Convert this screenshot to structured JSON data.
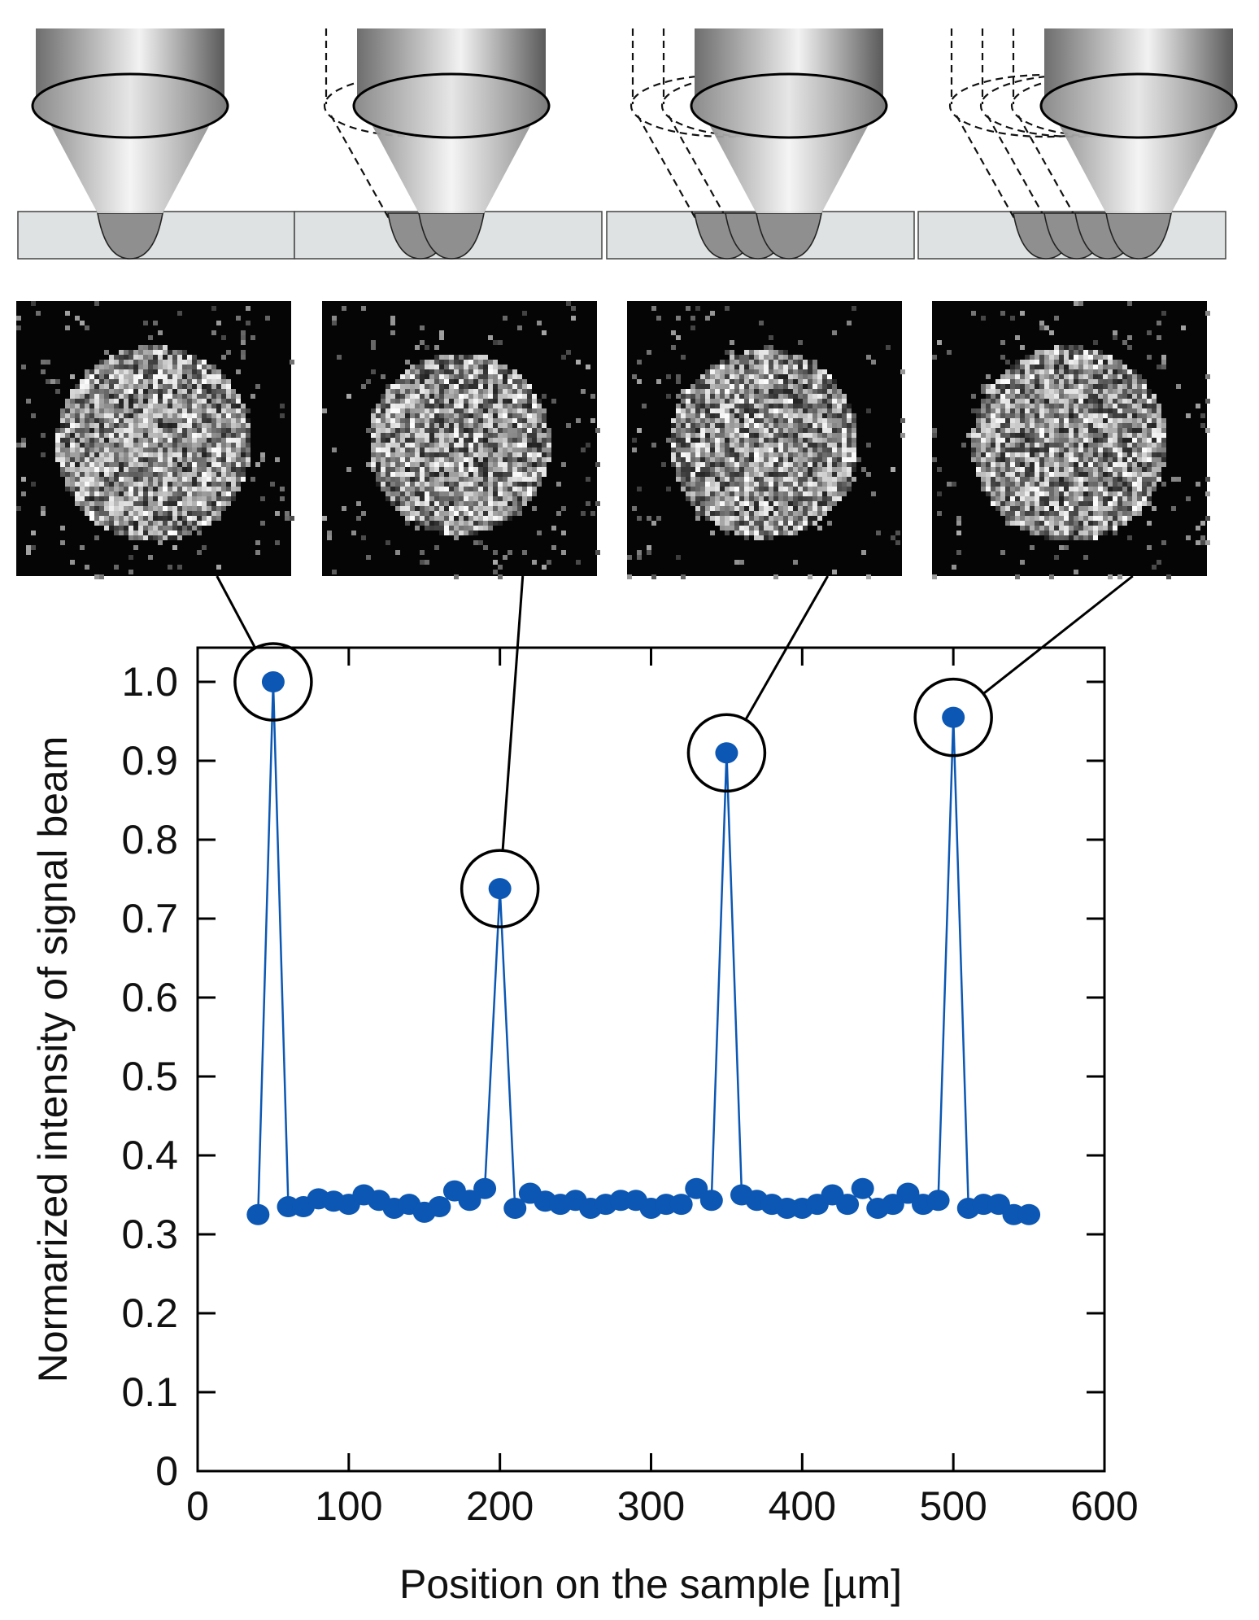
{
  "chart_data": {
    "type": "line",
    "title": "",
    "xlabel": "Position on the sample [µm]",
    "ylabel": "Normarized intensity of signal beam",
    "xlim": [
      0,
      600
    ],
    "ylim": [
      0,
      1.05
    ],
    "x_ticks": [
      0,
      100,
      200,
      300,
      400,
      500,
      600
    ],
    "x_tick_labels": [
      "0",
      "100",
      "200",
      "300",
      "400",
      "500",
      "600"
    ],
    "y_ticks": [
      0,
      0.1,
      0.2,
      0.3,
      0.4,
      0.5,
      0.6,
      0.7,
      0.8,
      0.9,
      1.0
    ],
    "y_tick_labels": [
      "0",
      "0.1",
      "0.2",
      "0.3",
      "0.4",
      "0.5",
      "0.6",
      "0.7",
      "0.8",
      "0.9",
      "1.0"
    ],
    "grid": false,
    "legend": "none",
    "series": [
      {
        "color": "#0b57b3",
        "points": [
          [
            40,
            0.325
          ],
          [
            50,
            1.0
          ],
          [
            60,
            0.335
          ],
          [
            70,
            0.335
          ],
          [
            80,
            0.345
          ],
          [
            90,
            0.342
          ],
          [
            100,
            0.338
          ],
          [
            110,
            0.35
          ],
          [
            120,
            0.343
          ],
          [
            130,
            0.333
          ],
          [
            140,
            0.338
          ],
          [
            150,
            0.328
          ],
          [
            160,
            0.335
          ],
          [
            170,
            0.355
          ],
          [
            180,
            0.343
          ],
          [
            190,
            0.358
          ],
          [
            200,
            0.738
          ],
          [
            210,
            0.333
          ],
          [
            220,
            0.352
          ],
          [
            230,
            0.342
          ],
          [
            240,
            0.338
          ],
          [
            250,
            0.343
          ],
          [
            260,
            0.333
          ],
          [
            270,
            0.338
          ],
          [
            280,
            0.343
          ],
          [
            290,
            0.343
          ],
          [
            300,
            0.333
          ],
          [
            310,
            0.338
          ],
          [
            320,
            0.338
          ],
          [
            330,
            0.358
          ],
          [
            340,
            0.343
          ],
          [
            350,
            0.91
          ],
          [
            360,
            0.35
          ],
          [
            370,
            0.343
          ],
          [
            380,
            0.338
          ],
          [
            390,
            0.333
          ],
          [
            400,
            0.333
          ],
          [
            410,
            0.338
          ],
          [
            420,
            0.35
          ],
          [
            430,
            0.338
          ],
          [
            440,
            0.358
          ],
          [
            450,
            0.333
          ],
          [
            460,
            0.338
          ],
          [
            470,
            0.352
          ],
          [
            480,
            0.338
          ],
          [
            490,
            0.343
          ],
          [
            500,
            0.955
          ],
          [
            510,
            0.333
          ],
          [
            520,
            0.338
          ],
          [
            530,
            0.338
          ],
          [
            540,
            0.325
          ],
          [
            550,
            0.325
          ]
        ]
      }
    ],
    "highlighted_points": [
      {
        "x": 50,
        "y": 1.0
      },
      {
        "x": 200,
        "y": 0.738
      },
      {
        "x": 350,
        "y": 0.91
      },
      {
        "x": 500,
        "y": 0.955
      }
    ]
  },
  "illustration": {
    "focus_positions_per_panel": [
      1,
      2,
      3,
      4
    ],
    "images_count": 4
  }
}
